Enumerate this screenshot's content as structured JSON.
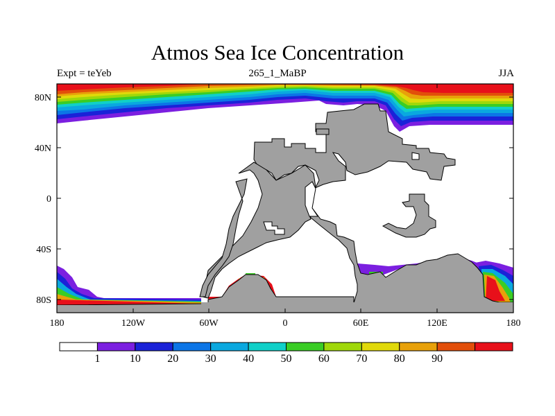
{
  "title": "Atmos Sea Ice Concentration",
  "subtitle_left": "Expt = teYeb",
  "subtitle_center": "265_1_MaBP",
  "subtitle_right": "JJA",
  "x_ticks": [
    "180",
    "120W",
    "60W",
    "0",
    "60E",
    "120E",
    "180"
  ],
  "y_ticks": [
    "80N",
    "40N",
    "0",
    "40S",
    "80S"
  ],
  "colorbar": {
    "colors": [
      "#ffffff",
      "#7b1fe0",
      "#1a22d8",
      "#0c75e6",
      "#0aa8df",
      "#10d0c8",
      "#3acd25",
      "#9fd80a",
      "#e0d90a",
      "#e8a10a",
      "#e24f0a",
      "#e8101a"
    ],
    "labels": [
      "1",
      "10",
      "20",
      "30",
      "40",
      "50",
      "60",
      "70",
      "80",
      "90"
    ]
  },
  "colors": {
    "land": "#a0a0a0",
    "ice_full": "#e8101a"
  }
}
